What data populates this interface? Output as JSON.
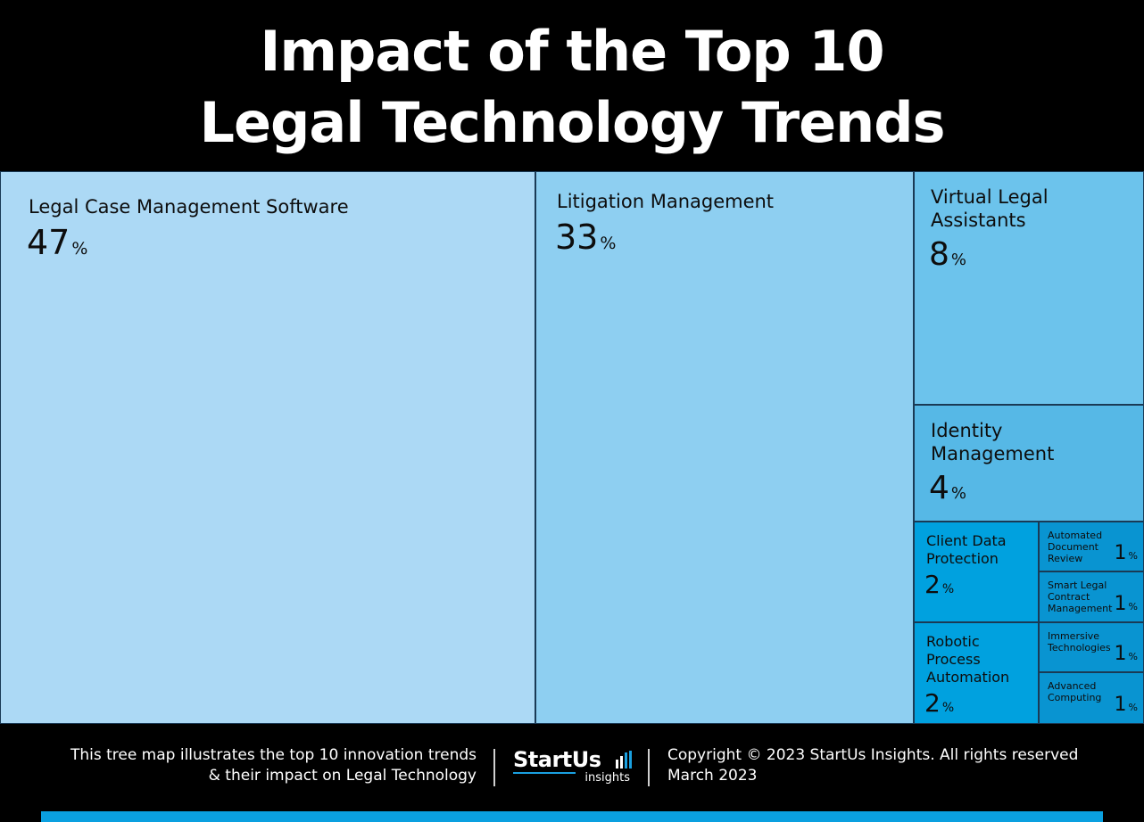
{
  "title": {
    "line1": "Impact of the Top 10",
    "line2": "Legal Technology Trends"
  },
  "chart_data": {
    "type": "treemap",
    "unit": "%",
    "items": [
      {
        "label": "Legal Case Management Software",
        "value": 47,
        "color": "#acd9f5"
      },
      {
        "label": "Litigation Management",
        "value": 33,
        "color": "#8ecff1"
      },
      {
        "label": "Virtual Legal Assistants",
        "value": 8,
        "color": "#6cc3ec"
      },
      {
        "label": "Identity Management",
        "value": 4,
        "color": "#56b8e6"
      },
      {
        "label": "Client Data Protection",
        "value": 2,
        "color": "#00a1df"
      },
      {
        "label": "Robotic Process Automation",
        "value": 2,
        "color": "#00a1df"
      },
      {
        "label": "Automated Document Review",
        "value": 1,
        "color": "#0994d1"
      },
      {
        "label": "Smart Legal Contract Management",
        "value": 1,
        "color": "#0994d1"
      },
      {
        "label": "Immersive Technologies",
        "value": 1,
        "color": "#0994d1"
      },
      {
        "label": "Advanced Computing",
        "value": 1,
        "color": "#0994d1"
      }
    ]
  },
  "footer": {
    "left_line1": "This tree map illustrates the top 10 innovation trends",
    "left_line2": "& their impact on Legal Technology",
    "logo_main": "StartUs",
    "logo_sub": "insights",
    "right_line1": "Copyright © 2023 StartUs Insights. All rights reserved",
    "right_line2": "March 2023"
  },
  "colors": {
    "background": "#000000",
    "accent_bar": "#0aa0e0",
    "tile_border": "#1a3a55"
  }
}
